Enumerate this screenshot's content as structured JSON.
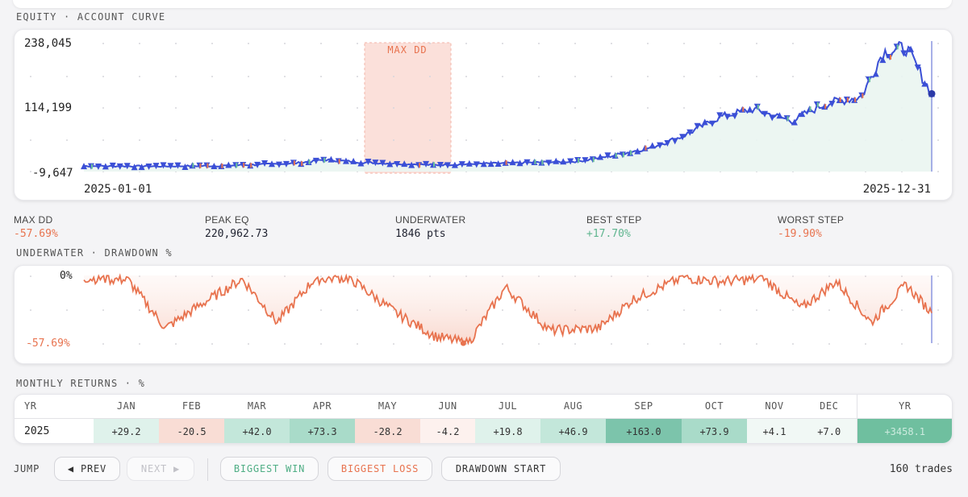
{
  "equity_section": {
    "title": "EQUITY · ACCOUNT CURVE",
    "max_dd_label": "MAX DD",
    "y_top": "238,045",
    "y_mid": "114,199",
    "y_bottom": "-9,647",
    "x_start": "2025-01-01",
    "x_end": "2025-12-31"
  },
  "stats": {
    "max_dd": {
      "label": "MAX DD",
      "value": "-57.69%"
    },
    "peak_eq": {
      "label": "PEAK EQ",
      "value": "220,962.73"
    },
    "underwater": {
      "label": "UNDERWATER",
      "value": "1846 pts"
    },
    "best_step": {
      "label": "BEST STEP",
      "value": "+17.70%"
    },
    "worst_step": {
      "label": "WORST STEP",
      "value": "-19.90%"
    }
  },
  "underwater_section": {
    "title": "UNDERWATER · DRAWDOWN %",
    "y_top": "0%",
    "y_bottom": "-57.69%"
  },
  "monthly_section": {
    "title": "MONTHLY RETURNS · %",
    "headers": [
      "YR",
      "JAN",
      "FEB",
      "MAR",
      "APR",
      "MAY",
      "JUN",
      "JUL",
      "AUG",
      "SEP",
      "OCT",
      "NOV",
      "DEC",
      "YR"
    ],
    "year": "2025",
    "values": [
      "+29.2",
      "-20.5",
      "+42.0",
      "+73.3",
      "-28.2",
      "-4.2",
      "+19.8",
      "+46.9",
      "+163.0",
      "+73.9",
      "+4.1",
      "+7.0"
    ],
    "year_total": "+3458.1"
  },
  "controls": {
    "jump_label": "JUMP",
    "prev": "◀ PREV",
    "next": "NEXT ▶",
    "biggest_win": "BIGGEST WIN",
    "biggest_loss": "BIGGEST LOSS",
    "drawdown_start": "DRAWDOWN START",
    "trades": "160 trades"
  },
  "colors": {
    "equity_line": "#3b4fd6",
    "win_marker": "#6cc49b",
    "loss_marker": "#e8734f",
    "drawdown_line": "#e8734f",
    "dd_highlight": "#fbe0da"
  },
  "chart_data": [
    {
      "type": "line",
      "title": "EQUITY · ACCOUNT CURVE",
      "x_range": [
        "2025-01-01",
        "2025-12-31"
      ],
      "ylim": [
        -9647,
        238045
      ],
      "y_ticks": [
        238045,
        114199,
        -9647
      ],
      "highlight_region": {
        "label": "MAX DD",
        "from": "2025-04-11",
        "to": "2025-07-10"
      },
      "series": [
        {
          "x": [
            "2025-01-01",
            "2025-02-01",
            "2025-03-01",
            "2025-04-01",
            "2025-04-15",
            "2025-05-01",
            "2025-06-01",
            "2025-07-01",
            "2025-08-01",
            "2025-08-15",
            "2025-09-01",
            "2025-09-15",
            "2025-10-01",
            "2025-10-15",
            "2025-11-01",
            "2025-11-15",
            "2025-12-01",
            "2025-12-10",
            "2025-12-20",
            "2025-12-31"
          ],
          "values": [
            1000,
            500,
            1500,
            6000,
            13000,
            8000,
            3000,
            6500,
            10000,
            20000,
            36000,
            58000,
            95000,
            110000,
            88000,
            120000,
            135000,
            220000,
            228000,
            140000
          ]
        }
      ]
    },
    {
      "type": "line",
      "title": "UNDERWATER · DRAWDOWN %",
      "x_range": [
        "2025-01-01",
        "2025-12-31"
      ],
      "ylim": [
        -57.69,
        0
      ],
      "y_ticks": [
        0,
        -57.69
      ],
      "series": [
        {
          "x": [
            "2025-01-01",
            "2025-01-20",
            "2025-02-05",
            "2025-02-20",
            "2025-03-10",
            "2025-03-25",
            "2025-04-10",
            "2025-04-25",
            "2025-05-15",
            "2025-06-01",
            "2025-06-15",
            "2025-07-01",
            "2025-07-20",
            "2025-08-10",
            "2025-08-25",
            "2025-09-15",
            "2025-10-01",
            "2025-10-20",
            "2025-11-05",
            "2025-11-20",
            "2025-12-05",
            "2025-12-20",
            "2025-12-31"
          ],
          "values": [
            -2,
            -4,
            -45,
            -25,
            -3,
            -40,
            -3,
            -2,
            -32,
            -52,
            -58,
            -10,
            -47,
            -45,
            -20,
            -2,
            -5,
            -3,
            -28,
            -5,
            -40,
            -8,
            -32
          ]
        }
      ]
    }
  ]
}
